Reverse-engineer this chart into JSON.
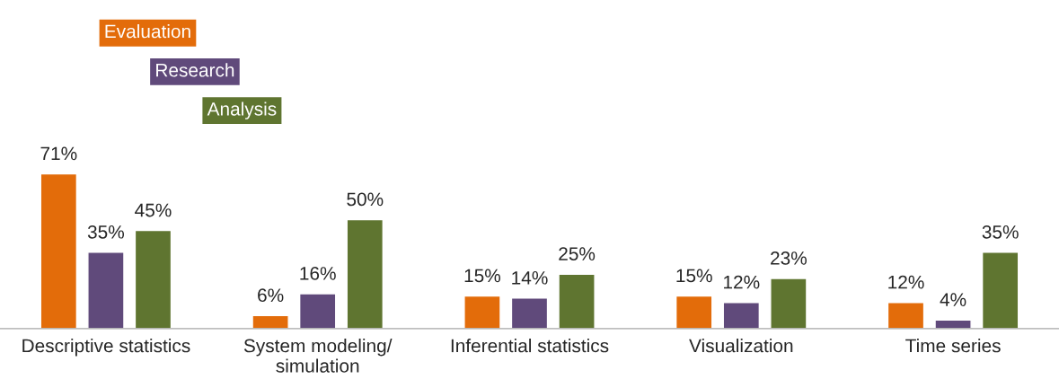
{
  "chart_data": {
    "type": "bar",
    "categories": [
      "Descriptive statistics",
      "System modeling/\nsimulation",
      "Inferential statistics",
      "Visualization",
      "Time series"
    ],
    "series": [
      {
        "name": "Evaluation",
        "color": "#e36c0a",
        "values": [
          71,
          6,
          15,
          15,
          12
        ],
        "value_labels": [
          "71%",
          "6%",
          "15%",
          "15%",
          "12%"
        ]
      },
      {
        "name": "Research",
        "color": "#604a7b",
        "values": [
          35,
          16,
          14,
          12,
          4
        ],
        "value_labels": [
          "35%",
          "16%",
          "14%",
          "12%",
          "4%"
        ]
      },
      {
        "name": "Analysis",
        "color": "#5f7530",
        "values": [
          45,
          50,
          25,
          23,
          35
        ],
        "value_labels": [
          "45%",
          "50%",
          "25%",
          "23%",
          "35%"
        ]
      }
    ],
    "legend": "top left",
    "grid": false
  }
}
